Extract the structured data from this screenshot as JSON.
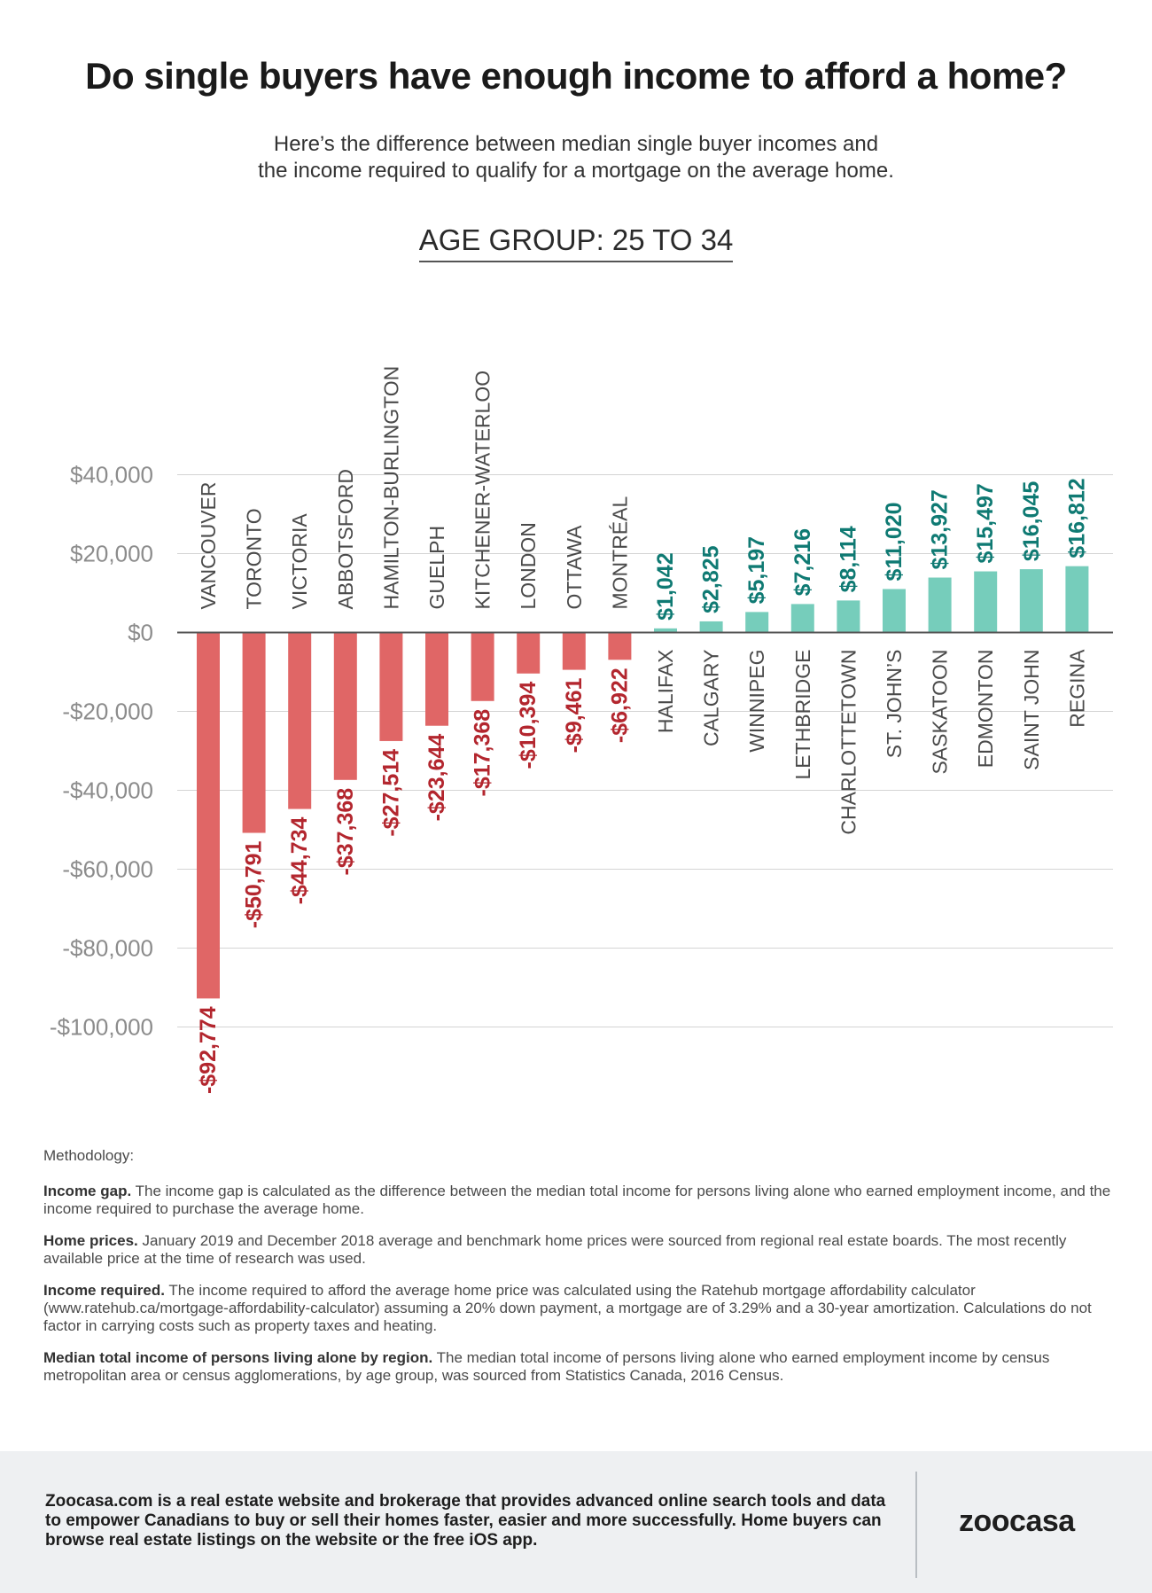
{
  "title": "Do single buyers have enough income to afford a home?",
  "subtitle_line1": "Here’s the difference between median single buyer incomes and",
  "subtitle_line2": "the income required to qualify for a mortgage on the average home.",
  "age_group": "AGE GROUP: 25 TO 34",
  "colors": {
    "negative_bar": "#e06666",
    "negative_label": "#b3262e",
    "positive_bar": "#76cdbb",
    "positive_label": "#0f7a73",
    "grid": "#d4d4d4",
    "axis_label": "#8c8c8c",
    "city_label": "#4a4a4a"
  },
  "chart_data": {
    "type": "bar",
    "title": "AGE GROUP: 25 TO 34",
    "xlabel": "",
    "ylabel": "",
    "ylim": [
      -100000,
      40000
    ],
    "yticks": [
      40000,
      20000,
      0,
      -20000,
      -40000,
      -60000,
      -80000,
      -100000
    ],
    "ytick_labels": [
      "$40,000",
      "$20,000",
      "$0",
      "-$20,000",
      "-$40,000",
      "-$60,000",
      "-$80,000",
      "-$100,000"
    ],
    "categories": [
      "VANCOUVER",
      "TORONTO",
      "VICTORIA",
      "ABBOTSFORD",
      "HAMILTON-BURLINGTON",
      "GUELPH",
      "KITCHENER-WATERLOO",
      "LONDON",
      "OTTAWA",
      "MONTRÉAL",
      "HALIFAX",
      "CALGARY",
      "WINNIPEG",
      "LETHBRIDGE",
      "CHARLOTTETOWN",
      "ST. JOHN’S",
      "SASKATOON",
      "EDMONTON",
      "SAINT JOHN",
      "REGINA"
    ],
    "values": [
      -92774,
      -50791,
      -44734,
      -37368,
      -27514,
      -23644,
      -17368,
      -10394,
      -9461,
      -6922,
      1042,
      2825,
      5197,
      7216,
      8114,
      11020,
      13927,
      15497,
      16045,
      16812
    ],
    "value_labels": [
      "-$92,774",
      "-$50,791",
      "-$44,734",
      "-$37,368",
      "-$27,514",
      "-$23,644",
      "-$17,368",
      "-$10,394",
      "-$9,461",
      "-$6,922",
      "$1,042",
      "$2,825",
      "$5,197",
      "$7,216",
      "$8,114",
      "$11,020",
      "$13,927",
      "$15,497",
      "$16,045",
      "$16,812"
    ],
    "grid": true
  },
  "methodology": {
    "heading": "Methodology:",
    "items": [
      {
        "term": "Income gap.",
        "text": " The income gap is calculated as the difference between the median total income for persons living alone who earned employment income, and the income required to purchase the average home."
      },
      {
        "term": "Home prices.",
        "text": " January 2019 and December 2018 average and benchmark home prices were sourced from regional real estate boards. The most recently available price at the time of research was used."
      },
      {
        "term": "Income required.",
        "text": " The income required to afford the average home price was calculated using the Ratehub mortgage affordability calculator (www.ratehub.ca/mortgage-affordability-calculator) assuming a 20% down payment, a mortgage are of 3.29% and a 30-year amortization. Calculations do not factor in carrying costs such as property taxes and heating."
      },
      {
        "term": "Median total income of persons living alone by region.",
        "text": " The median total income of persons living alone who earned employment income by census metropolitan area or census agglomerations, by age group, was sourced from Statistics Canada, 2016 Census."
      }
    ]
  },
  "footer": {
    "text": "Zoocasa.com is a real estate website and brokerage that provides advanced online search tools and data to empower Canadians to buy or sell their homes faster, easier and more successfully. Home buyers can browse real estate listings on the website or the free iOS app.",
    "logo": "zoocasa"
  }
}
